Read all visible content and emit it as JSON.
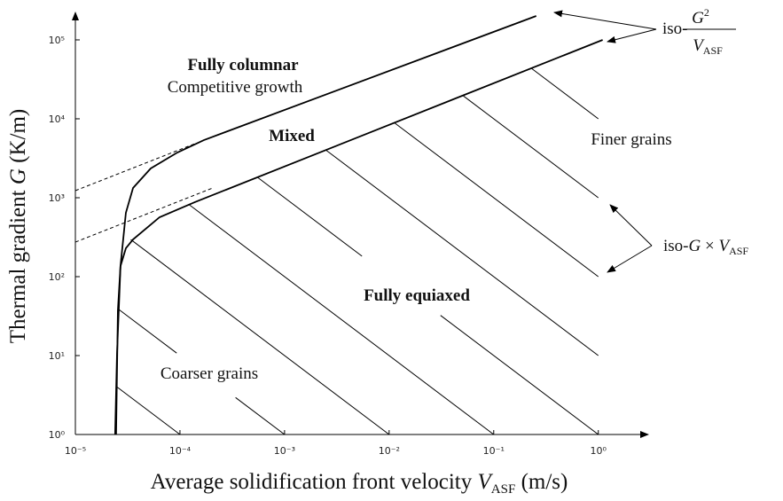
{
  "chart_data": {
    "type": "line",
    "xscale": "log",
    "yscale": "log",
    "xlim": [
      1e-05,
      3
    ],
    "ylim": [
      1,
      220000
    ],
    "xticks": [
      {
        "value": 1e-05,
        "label": "10⁻⁵"
      },
      {
        "value": 0.0001,
        "label": "10⁻⁴"
      },
      {
        "value": 0.001,
        "label": "10⁻³"
      },
      {
        "value": 0.01,
        "label": "10⁻²"
      },
      {
        "value": 0.1,
        "label": "10⁻¹"
      },
      {
        "value": 1,
        "label": "10⁰"
      }
    ],
    "yticks": [
      {
        "value": 1,
        "label": "10⁰"
      },
      {
        "value": 10,
        "label": "10¹"
      },
      {
        "value": 100,
        "label": "10²"
      },
      {
        "value": 1000,
        "label": "10³"
      },
      {
        "value": 10000,
        "label": "10⁴"
      },
      {
        "value": 100000,
        "label": "10⁵"
      }
    ],
    "x_label": [
      "Average solidification front velocity ",
      "V",
      "ASF",
      " (m/s)"
    ],
    "y_label": [
      "Thermal gradient ",
      "G",
      " (K/m)"
    ],
    "annotations": {
      "columnar": "Fully columnar",
      "competitive": "Competitive growth",
      "mixed": "Mixed",
      "equiaxed": "Fully equiaxed",
      "coarser": "Coarser grains",
      "finer": "Finer grains",
      "iso_fraction": {
        "prefix": "iso-",
        "numerator": [
          "G",
          "2"
        ],
        "denominator": [
          "V",
          "ASF"
        ]
      },
      "iso_product": [
        "iso-",
        "G",
        " × ",
        "V",
        "ASF"
      ]
    },
    "series": [
      {
        "color": "#000000",
        "line_width": 1.8,
        "style": "solid",
        "x": [
          2.4e-05,
          2.5e-05,
          2.7e-05,
          3.04e-05,
          3.56e-05,
          5.25e-05,
          9.44e-05,
          0.000169,
          0.255
        ],
        "values": [
          1,
          10.3,
          136,
          644,
          1330,
          2350,
          3740,
          5370,
          201000
        ]
      },
      {
        "color": "#000000",
        "line_width": 1.8,
        "style": "solid",
        "x": [
          2.45e-05,
          2.55e-05,
          2.7e-05,
          3.04e-05,
          3.56e-05,
          6.38e-05,
          0.000139,
          1.1
        ],
        "values": [
          1,
          37.4,
          136,
          229,
          296,
          566,
          879,
          100000
        ]
      },
      {
        "color": "#000000",
        "line_width": 1,
        "style": "dashed",
        "x": [
          1e-05,
          0.000139
        ],
        "values": [
          1230,
          4840
        ]
      },
      {
        "color": "#000000",
        "line_width": 1,
        "style": "dashed",
        "x": [
          1e-05,
          0.000206
        ],
        "values": [
          274,
          1330
        ]
      },
      {
        "color": "#000000",
        "line_width": 1,
        "style": "solid",
        "x": [
          2.45e-05,
          0.0001
        ],
        "values": [
          4.08,
          1
        ]
      },
      {
        "color": "#000000",
        "line_width": 1,
        "style": "solid",
        "x": [
          2.57e-05,
          9.3e-05,
          0.00018,
          0.00034,
          0.001
        ],
        "values": [
          38.9,
          10.75,
          null,
          2.94,
          1
        ]
      },
      {
        "color": "#000000",
        "line_width": 1,
        "style": "solid",
        "x": [
          3.39e-05,
          0.01
        ],
        "values": [
          295,
          1
        ]
      },
      {
        "color": "#000000",
        "line_width": 1,
        "style": "solid",
        "x": [
          0.000123,
          0.1
        ],
        "values": [
          813,
          1
        ]
      },
      {
        "color": "#000000",
        "line_width": 1,
        "style": "solid",
        "x": [
          0.00055,
          0.0055,
          0.015,
          0.031,
          1
        ],
        "values": [
          1818,
          182,
          null,
          32.3,
          1
        ]
      },
      {
        "color": "#000000",
        "line_width": 1,
        "style": "solid",
        "x": [
          0.00251,
          1
        ],
        "values": [
          3980,
          10
        ]
      },
      {
        "color": "#000000",
        "line_width": 1,
        "style": "solid",
        "x": [
          0.0112,
          1
        ],
        "values": [
          8930,
          100
        ]
      },
      {
        "color": "#000000",
        "line_width": 1,
        "style": "solid",
        "x": [
          0.0513,
          1
        ],
        "values": [
          19500,
          1000
        ]
      },
      {
        "color": "#000000",
        "line_width": 1,
        "style": "solid",
        "x": [
          0.229,
          1
        ],
        "values": [
          43700,
          10000
        ]
      }
    ]
  }
}
